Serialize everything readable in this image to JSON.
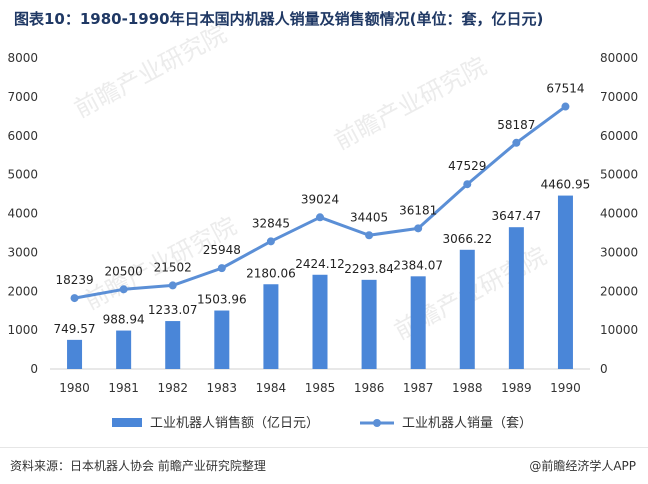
{
  "page": {
    "title": "图表10：1980-1990年日本国内机器人销量及销售额情况(单位：套，亿日元)",
    "source": "资料来源：日本机器人协会  前瞻产业研究院整理",
    "brand": "@前瞻经济学人APP"
  },
  "chart_data": {
    "type": "bar",
    "categories": [
      "1980",
      "1981",
      "1982",
      "1983",
      "1984",
      "1985",
      "1986",
      "1987",
      "1988",
      "1989",
      "1990"
    ],
    "series": [
      {
        "name": "工业机器人销售额（亿日元）",
        "type": "bar",
        "axis": "left",
        "color": "#4a86d8",
        "values": [
          749.57,
          988.94,
          1233.07,
          1503.96,
          2180.06,
          2424.12,
          2293.84,
          2384.07,
          3066.22,
          3647.47,
          4460.95
        ],
        "labels": [
          "749.57",
          "988.94",
          "1233.07",
          "1503.96",
          "2180.06",
          "2424.12",
          "2293.84",
          "2384.07",
          "3066.22",
          "3647.47",
          "4460.95"
        ]
      },
      {
        "name": "工业机器人销量（套）",
        "type": "line",
        "axis": "right",
        "color": "#5b8fd6",
        "values": [
          18239,
          20500,
          21502,
          25948,
          32845,
          39024,
          34405,
          36181,
          47529,
          58187,
          67514
        ],
        "labels": [
          "18239",
          "20500",
          "21502",
          "25948",
          "32845",
          "39024",
          "34405",
          "36181",
          "47529",
          "58187",
          "67514"
        ]
      }
    ],
    "y_left": {
      "min": 0,
      "max": 8000,
      "ticks": [
        "0",
        "1000",
        "2000",
        "3000",
        "4000",
        "5000",
        "6000",
        "7000",
        "8000"
      ]
    },
    "y_right": {
      "min": 0,
      "max": 80000,
      "ticks": [
        "0",
        "10000",
        "20000",
        "30000",
        "40000",
        "50000",
        "60000",
        "70000",
        "80000"
      ]
    },
    "grid": false,
    "legend": "bottom",
    "watermark": "前瞻产业研究院"
  }
}
